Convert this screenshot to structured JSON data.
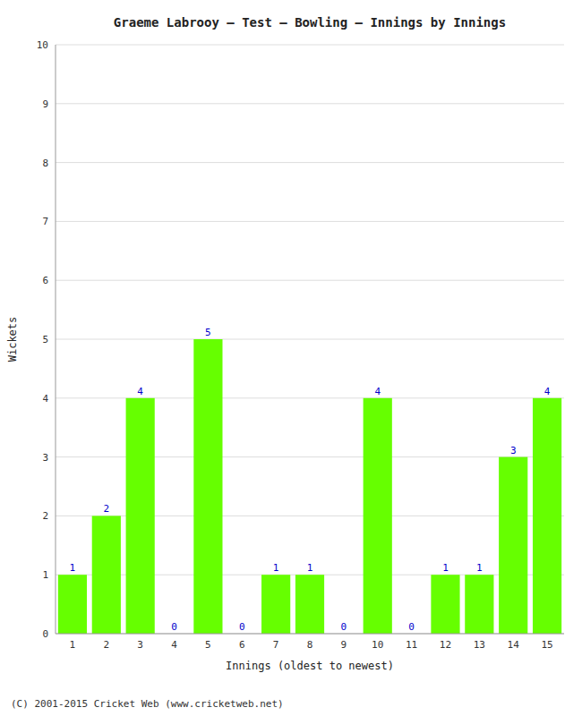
{
  "chart_data": {
    "type": "bar",
    "title": "Graeme Labrooy – Test – Bowling – Innings by Innings",
    "x_label": "Innings (oldest to newest)",
    "y_label": "Wickets",
    "categories": [
      1,
      2,
      3,
      4,
      5,
      6,
      7,
      8,
      9,
      10,
      11,
      12,
      13,
      14,
      15
    ],
    "values": [
      1,
      2,
      4,
      0,
      5,
      0,
      1,
      1,
      0,
      4,
      0,
      1,
      1,
      3,
      4
    ],
    "color": "#66ff00",
    "ylim": [
      0,
      10
    ],
    "yticks": [
      0,
      1,
      2,
      3,
      4,
      5,
      6,
      7,
      8,
      9,
      10
    ],
    "grid": true,
    "data_labels": true,
    "footer": "(C) 2001-2015 Cricket Web (www.cricketweb.net)"
  }
}
